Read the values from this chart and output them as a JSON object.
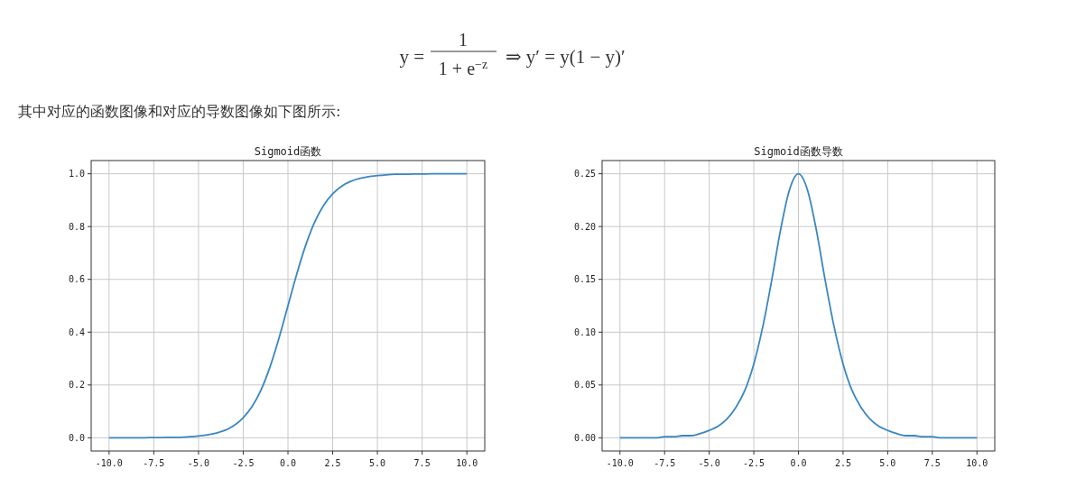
{
  "chart_data": [
    {
      "type": "other",
      "annotations": [
        "y =",
        "1",
        "1 + e$^{−z}$",
        "⇒ y′ = y(1 − y)′",
        "其中对应的函数图像和对应的导数图像如下图所示:"
      ]
    },
    {
      "type": "line",
      "title": "Sigmoid函数",
      "x": [
        -10,
        -9.5,
        -9,
        -8.5,
        -8,
        -7.5,
        -7,
        -6.5,
        -6,
        -5.5,
        -5,
        -4.5,
        -4,
        -3.5,
        -3,
        -2.5,
        -2,
        -1.5,
        -1,
        -0.5,
        0,
        0.5,
        1,
        1.5,
        2,
        2.5,
        3,
        3.5,
        4,
        4.5,
        5,
        5.5,
        6,
        6.5,
        7,
        7.5,
        8,
        8.5,
        9,
        9.5,
        10
      ],
      "series": [
        {
          "color": "#3a87c0",
          "values": [
            0,
            0,
            0,
            0,
            0,
            0.001,
            0.001,
            0.002,
            0.002,
            0.004,
            0.007,
            0.011,
            0.018,
            0.029,
            0.047,
            0.076,
            0.119,
            0.182,
            0.269,
            0.378,
            0.5,
            0.622,
            0.731,
            0.818,
            0.881,
            0.924,
            0.953,
            0.971,
            0.982,
            0.989,
            0.993,
            0.996,
            0.998,
            0.998,
            0.999,
            0.999,
            1,
            1,
            1,
            1,
            1
          ]
        }
      ],
      "xlim": [
        -11,
        11
      ],
      "xticks": [
        {
          "value": -10,
          "label": "-10.0"
        },
        {
          "value": -7.5,
          "label": "-7.5"
        },
        {
          "value": -5,
          "label": "-5.0"
        },
        {
          "value": -2.5,
          "label": "-2.5"
        },
        {
          "value": 0,
          "label": "0.0"
        },
        {
          "value": 2.5,
          "label": "2.5"
        },
        {
          "value": 5,
          "label": "5.0"
        },
        {
          "value": 7.5,
          "label": "7.5"
        },
        {
          "value": 10,
          "label": "10.0"
        }
      ],
      "ylim": [
        -0.05,
        1.05
      ],
      "yticks": [
        {
          "value": 0,
          "label": "0.0"
        },
        0.2,
        0.4,
        0.6,
        0.8,
        {
          "value": 1,
          "label": "1.0"
        }
      ],
      "grid": true
    },
    {
      "type": "line",
      "title": "Sigmoid函数导数",
      "x": [
        -10,
        -9.5,
        -9,
        -8.5,
        -8,
        -7.5,
        -7,
        -6.5,
        -6,
        -5.5,
        -5,
        -4.5,
        -4,
        -3.5,
        -3,
        -2.5,
        -2,
        -1.5,
        -1,
        -0.5,
        0,
        0.5,
        1,
        1.5,
        2,
        2.5,
        3,
        3.5,
        4,
        4.5,
        5,
        5.5,
        6,
        6.5,
        7,
        7.5,
        8,
        8.5,
        9,
        9.5,
        10
      ],
      "series": [
        {
          "color": "#3a87c0",
          "values": [
            0,
            0,
            0,
            0,
            0,
            0.001,
            0.001,
            0.002,
            0.002,
            0.004,
            0.007,
            0.011,
            0.018,
            0.029,
            0.045,
            0.07,
            0.105,
            0.149,
            0.197,
            0.235,
            0.25,
            0.235,
            0.197,
            0.149,
            0.105,
            0.07,
            0.045,
            0.029,
            0.018,
            0.011,
            0.007,
            0.004,
            0.002,
            0.002,
            0.001,
            0.001,
            0,
            0,
            0,
            0,
            0
          ]
        }
      ],
      "xlim": [
        -11,
        11
      ],
      "xticks": [
        {
          "value": -10,
          "label": "-10.0"
        },
        {
          "value": -7.5,
          "label": "-7.5"
        },
        {
          "value": -5,
          "label": "-5.0"
        },
        {
          "value": -2.5,
          "label": "-2.5"
        },
        {
          "value": 0,
          "label": "0.0"
        },
        {
          "value": 2.5,
          "label": "2.5"
        },
        {
          "value": 5,
          "label": "5.0"
        },
        {
          "value": 7.5,
          "label": "7.5"
        },
        {
          "value": 10,
          "label": "10.0"
        }
      ],
      "ylim": [
        -0.0125,
        0.2625
      ],
      "yticks": [
        {
          "value": 0,
          "label": "0.00"
        },
        {
          "value": 0.05,
          "label": "0.05"
        },
        {
          "value": 0.1,
          "label": "0.10"
        },
        {
          "value": 0.15,
          "label": "0.15"
        },
        {
          "value": 0.2,
          "label": "0.20"
        },
        {
          "value": 0.25,
          "label": "0.25"
        }
      ],
      "grid": true
    }
  ]
}
